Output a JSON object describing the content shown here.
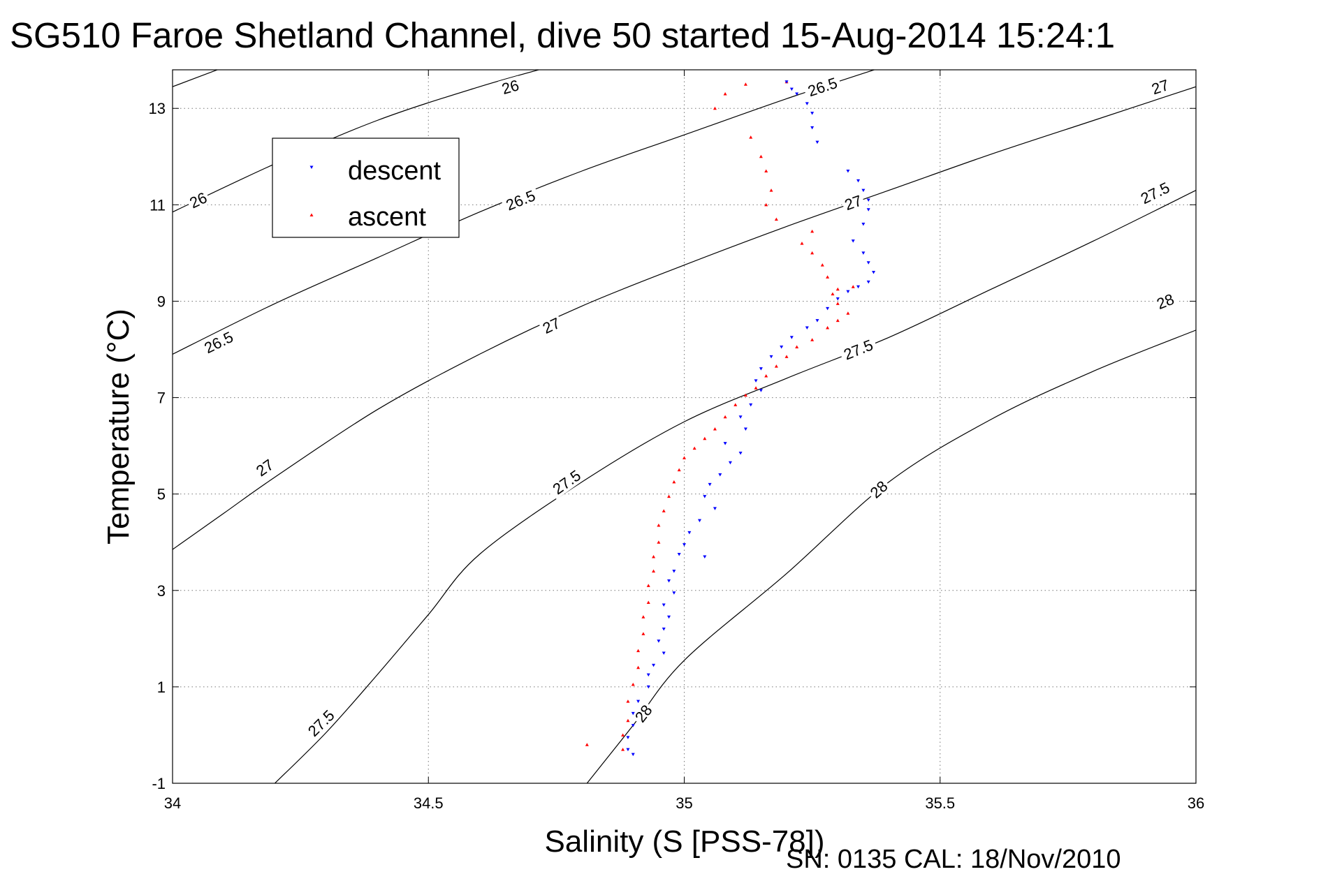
{
  "chart_data": {
    "type": "scatter",
    "title": "SG510 Faroe Shetland Channel, dive 50 started 15-Aug-2014 15:24:1",
    "xlabel": "Salinity (S [PSS-78])",
    "ylabel": "Temperature (°C)",
    "footer": "SN: 0135  CAL: 18/Nov/2010",
    "xlim": [
      34,
      36
    ],
    "ylim": [
      -1,
      13.8
    ],
    "x_ticks": [
      34,
      34.5,
      35,
      35.5,
      36
    ],
    "x_tick_labels": [
      "34",
      "34.5",
      "35",
      "35.5",
      "36"
    ],
    "y_ticks": [
      -1,
      1,
      3,
      5,
      7,
      9,
      11,
      13
    ],
    "y_tick_labels": [
      "-1",
      "1",
      "3",
      "5",
      "7",
      "9",
      "11",
      "13"
    ],
    "grid": true,
    "grid_style": "dotted",
    "legend_position": "top-left",
    "colors": {
      "descent": "#0000ff",
      "ascent": "#ff0000",
      "contour": "#000000"
    },
    "density_contours": [
      {
        "level": "26",
        "label_positions": [
          [
            34.66,
            13.45
          ],
          [
            34.05,
            11.1
          ]
        ],
        "points": [
          [
            34.0,
            10.85
          ],
          [
            34.2,
            11.85
          ],
          [
            34.4,
            12.75
          ],
          [
            34.6,
            13.45
          ],
          [
            34.75,
            13.9
          ]
        ]
      },
      {
        "level": "26",
        "label_positions": [],
        "points": [
          [
            34.0,
            13.45
          ],
          [
            34.1,
            13.85
          ]
        ]
      },
      {
        "level": "26.5",
        "label_positions": [
          [
            35.27,
            13.45
          ],
          [
            34.68,
            11.1
          ],
          [
            34.09,
            8.15
          ]
        ],
        "points": [
          [
            34.0,
            7.9
          ],
          [
            34.2,
            8.95
          ],
          [
            34.4,
            9.9
          ],
          [
            34.6,
            10.85
          ],
          [
            34.8,
            11.7
          ],
          [
            35.0,
            12.45
          ],
          [
            35.2,
            13.2
          ],
          [
            35.4,
            13.9
          ]
        ]
      },
      {
        "level": "27",
        "label_positions": [
          [
            35.93,
            13.45
          ],
          [
            35.33,
            11.05
          ],
          [
            34.74,
            8.5
          ],
          [
            34.18,
            5.55
          ]
        ],
        "points": [
          [
            34.0,
            3.85
          ],
          [
            34.1,
            4.6
          ],
          [
            34.2,
            5.35
          ],
          [
            34.4,
            6.75
          ],
          [
            34.6,
            7.9
          ],
          [
            34.8,
            8.9
          ],
          [
            35.0,
            9.75
          ],
          [
            35.2,
            10.55
          ],
          [
            35.4,
            11.3
          ],
          [
            35.6,
            12.05
          ],
          [
            35.8,
            12.75
          ],
          [
            36.0,
            13.45
          ]
        ]
      },
      {
        "level": "27.5",
        "label_positions": [
          [
            35.92,
            11.25
          ],
          [
            35.34,
            8.0
          ],
          [
            34.77,
            5.25
          ],
          [
            34.29,
            0.25
          ]
        ],
        "points": [
          [
            34.2,
            -1.0
          ],
          [
            34.3,
            0.05
          ],
          [
            34.4,
            1.25
          ],
          [
            34.5,
            2.5
          ],
          [
            34.6,
            3.75
          ],
          [
            34.8,
            5.25
          ],
          [
            35.0,
            6.5
          ],
          [
            35.2,
            7.4
          ],
          [
            35.4,
            8.25
          ],
          [
            35.6,
            9.25
          ],
          [
            35.8,
            10.25
          ],
          [
            36.0,
            11.3
          ]
        ]
      },
      {
        "level": "28",
        "label_positions": [
          [
            35.94,
            9.0
          ],
          [
            35.38,
            5.1
          ],
          [
            34.92,
            0.45
          ]
        ],
        "points": [
          [
            34.81,
            -1.0
          ],
          [
            34.9,
            0.2
          ],
          [
            35.0,
            1.55
          ],
          [
            35.2,
            3.35
          ],
          [
            35.4,
            5.25
          ],
          [
            35.6,
            6.55
          ],
          [
            35.8,
            7.55
          ],
          [
            36.0,
            8.4
          ]
        ]
      }
    ],
    "series": [
      {
        "name": "descent",
        "marker": "triangle-down",
        "points": [
          [
            35.2,
            13.55
          ],
          [
            35.21,
            13.4
          ],
          [
            35.22,
            13.3
          ],
          [
            35.24,
            13.1
          ],
          [
            35.25,
            12.9
          ],
          [
            35.25,
            12.6
          ],
          [
            35.26,
            12.3
          ],
          [
            35.32,
            11.7
          ],
          [
            35.34,
            11.5
          ],
          [
            35.35,
            11.3
          ],
          [
            35.36,
            11.1
          ],
          [
            35.36,
            10.9
          ],
          [
            35.35,
            10.6
          ],
          [
            35.33,
            10.25
          ],
          [
            35.35,
            10.0
          ],
          [
            35.36,
            9.8
          ],
          [
            35.37,
            9.6
          ],
          [
            35.36,
            9.4
          ],
          [
            35.34,
            9.3
          ],
          [
            35.32,
            9.2
          ],
          [
            35.3,
            9.05
          ],
          [
            35.28,
            8.85
          ],
          [
            35.26,
            8.6
          ],
          [
            35.24,
            8.45
          ],
          [
            35.21,
            8.25
          ],
          [
            35.19,
            8.05
          ],
          [
            35.17,
            7.85
          ],
          [
            35.15,
            7.6
          ],
          [
            35.14,
            7.35
          ],
          [
            35.15,
            7.15
          ],
          [
            35.13,
            6.85
          ],
          [
            35.11,
            6.6
          ],
          [
            35.12,
            6.35
          ],
          [
            35.08,
            6.05
          ],
          [
            35.11,
            5.85
          ],
          [
            35.09,
            5.65
          ],
          [
            35.07,
            5.4
          ],
          [
            35.05,
            5.2
          ],
          [
            35.04,
            4.95
          ],
          [
            35.06,
            4.7
          ],
          [
            35.03,
            4.45
          ],
          [
            35.01,
            4.2
          ],
          [
            35.0,
            3.95
          ],
          [
            34.99,
            3.75
          ],
          [
            35.04,
            3.7
          ],
          [
            34.98,
            3.4
          ],
          [
            34.97,
            3.2
          ],
          [
            34.98,
            2.95
          ],
          [
            34.96,
            2.7
          ],
          [
            34.97,
            2.45
          ],
          [
            34.96,
            2.2
          ],
          [
            34.95,
            1.95
          ],
          [
            34.96,
            1.7
          ],
          [
            34.94,
            1.45
          ],
          [
            34.93,
            1.25
          ],
          [
            34.93,
            1.0
          ],
          [
            34.91,
            0.7
          ],
          [
            34.9,
            0.45
          ],
          [
            34.9,
            0.2
          ],
          [
            34.89,
            -0.05
          ],
          [
            34.89,
            -0.3
          ],
          [
            34.9,
            -0.4
          ]
        ]
      },
      {
        "name": "ascent",
        "marker": "triangle-up",
        "points": [
          [
            34.81,
            -0.2
          ],
          [
            34.88,
            -0.3
          ],
          [
            34.88,
            0.0
          ],
          [
            34.89,
            0.3
          ],
          [
            34.89,
            0.7
          ],
          [
            34.9,
            1.05
          ],
          [
            34.91,
            1.4
          ],
          [
            34.91,
            1.75
          ],
          [
            34.92,
            2.1
          ],
          [
            34.92,
            2.45
          ],
          [
            34.93,
            2.75
          ],
          [
            34.93,
            3.1
          ],
          [
            34.94,
            3.4
          ],
          [
            34.94,
            3.7
          ],
          [
            34.95,
            4.0
          ],
          [
            34.95,
            4.35
          ],
          [
            34.96,
            4.65
          ],
          [
            34.97,
            4.95
          ],
          [
            34.98,
            5.25
          ],
          [
            34.99,
            5.5
          ],
          [
            35.0,
            5.75
          ],
          [
            35.02,
            5.95
          ],
          [
            35.04,
            6.15
          ],
          [
            35.06,
            6.35
          ],
          [
            35.08,
            6.6
          ],
          [
            35.1,
            6.85
          ],
          [
            35.12,
            7.05
          ],
          [
            35.14,
            7.2
          ],
          [
            35.16,
            7.45
          ],
          [
            35.18,
            7.65
          ],
          [
            35.2,
            7.85
          ],
          [
            35.22,
            8.05
          ],
          [
            35.25,
            8.2
          ],
          [
            35.28,
            8.45
          ],
          [
            35.3,
            8.6
          ],
          [
            35.32,
            8.75
          ],
          [
            35.3,
            8.95
          ],
          [
            35.29,
            9.15
          ],
          [
            35.3,
            9.25
          ],
          [
            35.33,
            9.3
          ],
          [
            35.28,
            9.5
          ],
          [
            35.27,
            9.75
          ],
          [
            35.25,
            10.0
          ],
          [
            35.23,
            10.2
          ],
          [
            35.25,
            10.45
          ],
          [
            35.18,
            10.7
          ],
          [
            35.16,
            11.0
          ],
          [
            35.17,
            11.3
          ],
          [
            35.16,
            11.7
          ],
          [
            35.15,
            12.0
          ],
          [
            35.13,
            12.4
          ],
          [
            35.06,
            13.0
          ],
          [
            35.08,
            13.3
          ],
          [
            35.12,
            13.5
          ],
          [
            35.2,
            13.55
          ]
        ]
      }
    ]
  }
}
